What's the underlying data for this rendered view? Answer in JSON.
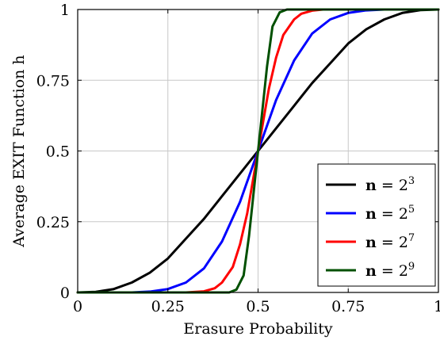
{
  "chart_data": {
    "type": "line",
    "xlabel": "Erasure Probability",
    "ylabel": "Average EXIT Function h",
    "xlim": [
      0,
      1
    ],
    "ylim": [
      0,
      1
    ],
    "x_ticks": [
      {
        "value": 0,
        "label": "0"
      },
      {
        "value": 0.25,
        "label": "0.25"
      },
      {
        "value": 0.5,
        "label": "0.5"
      },
      {
        "value": 0.75,
        "label": "0.75"
      },
      {
        "value": 1,
        "label": "1"
      }
    ],
    "y_ticks": [
      {
        "value": 0,
        "label": "0"
      },
      {
        "value": 0.25,
        "label": "0.25"
      },
      {
        "value": 0.5,
        "label": "0.5"
      },
      {
        "value": 0.75,
        "label": "0.75"
      },
      {
        "value": 1,
        "label": "1"
      }
    ],
    "grid": true,
    "legend": {
      "placement": "bottom-right"
    },
    "series": [
      {
        "name_prefix": "n",
        "name_eq": " = 2",
        "name_exp": "3",
        "color": "#000000",
        "points": [
          [
            0,
            0
          ],
          [
            0.05,
            0.002
          ],
          [
            0.1,
            0.012
          ],
          [
            0.15,
            0.035
          ],
          [
            0.2,
            0.07
          ],
          [
            0.25,
            0.12
          ],
          [
            0.3,
            0.19
          ],
          [
            0.35,
            0.26
          ],
          [
            0.4,
            0.34
          ],
          [
            0.45,
            0.42
          ],
          [
            0.5,
            0.5
          ],
          [
            0.55,
            0.58
          ],
          [
            0.6,
            0.66
          ],
          [
            0.65,
            0.74
          ],
          [
            0.7,
            0.81
          ],
          [
            0.75,
            0.88
          ],
          [
            0.8,
            0.93
          ],
          [
            0.85,
            0.965
          ],
          [
            0.9,
            0.988
          ],
          [
            0.95,
            0.998
          ],
          [
            1,
            1
          ]
        ]
      },
      {
        "name_prefix": "n",
        "name_eq": " = 2",
        "name_exp": "5",
        "color": "#0000ff",
        "points": [
          [
            0,
            0
          ],
          [
            0.15,
            0
          ],
          [
            0.2,
            0.003
          ],
          [
            0.25,
            0.012
          ],
          [
            0.3,
            0.035
          ],
          [
            0.35,
            0.085
          ],
          [
            0.4,
            0.18
          ],
          [
            0.45,
            0.32
          ],
          [
            0.5,
            0.5
          ],
          [
            0.55,
            0.68
          ],
          [
            0.6,
            0.82
          ],
          [
            0.65,
            0.915
          ],
          [
            0.7,
            0.965
          ],
          [
            0.75,
            0.988
          ],
          [
            0.8,
            0.997
          ],
          [
            0.85,
            1
          ],
          [
            1,
            1
          ]
        ]
      },
      {
        "name_prefix": "n",
        "name_eq": " = 2",
        "name_exp": "7",
        "color": "#ff0000",
        "points": [
          [
            0,
            0
          ],
          [
            0.3,
            0
          ],
          [
            0.35,
            0.004
          ],
          [
            0.38,
            0.015
          ],
          [
            0.4,
            0.035
          ],
          [
            0.43,
            0.09
          ],
          [
            0.45,
            0.17
          ],
          [
            0.47,
            0.28
          ],
          [
            0.5,
            0.5
          ],
          [
            0.53,
            0.72
          ],
          [
            0.55,
            0.83
          ],
          [
            0.57,
            0.91
          ],
          [
            0.6,
            0.965
          ],
          [
            0.62,
            0.985
          ],
          [
            0.65,
            0.996
          ],
          [
            0.68,
            1
          ],
          [
            1,
            1
          ]
        ]
      },
      {
        "name_prefix": "n",
        "name_eq": " = 2",
        "name_exp": "9",
        "color": "#005000",
        "points": [
          [
            0,
            0
          ],
          [
            0.42,
            0
          ],
          [
            0.44,
            0.01
          ],
          [
            0.46,
            0.06
          ],
          [
            0.475,
            0.2
          ],
          [
            0.49,
            0.38
          ],
          [
            0.5,
            0.5
          ],
          [
            0.51,
            0.62
          ],
          [
            0.525,
            0.8
          ],
          [
            0.54,
            0.94
          ],
          [
            0.56,
            0.99
          ],
          [
            0.58,
            1
          ],
          [
            1,
            1
          ]
        ]
      }
    ]
  }
}
